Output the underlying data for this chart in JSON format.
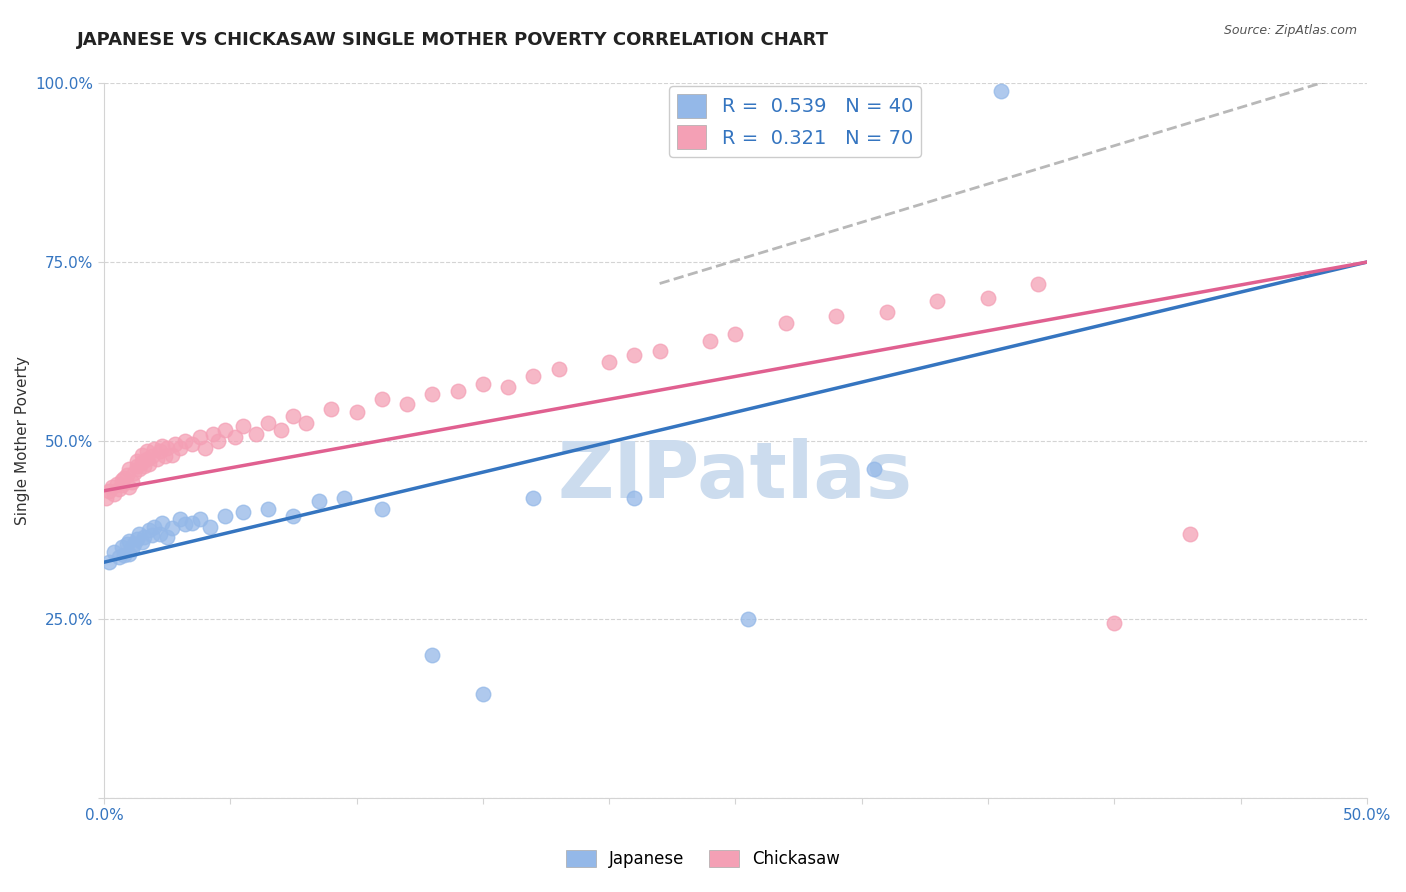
{
  "title": "JAPANESE VS CHICKASAW SINGLE MOTHER POVERTY CORRELATION CHART",
  "source_text": "Source: ZipAtlas.com",
  "ylabel": "Single Mother Poverty",
  "xlabel": "",
  "xlim": [
    0.0,
    0.5
  ],
  "ylim": [
    0.0,
    1.0
  ],
  "xticks": [
    0.0,
    0.05,
    0.1,
    0.15,
    0.2,
    0.25,
    0.3,
    0.35,
    0.4,
    0.45,
    0.5
  ],
  "yticks": [
    0.0,
    0.25,
    0.5,
    0.75,
    1.0
  ],
  "xticklabels": [
    "0.0%",
    "",
    "",
    "",
    "",
    "",
    "",
    "",
    "",
    "",
    "50.0%"
  ],
  "yticklabels": [
    "",
    "25.0%",
    "50.0%",
    "75.0%",
    "100.0%"
  ],
  "legend_R_japanese": "0.539",
  "legend_N_japanese": "40",
  "legend_R_chickasaw": "0.321",
  "legend_N_chickasaw": "70",
  "japanese_color": "#94b8e8",
  "chickasaw_color": "#f4a0b5",
  "japanese_line_color": "#3575c0",
  "chickasaw_line_color": "#e06090",
  "dashed_line_color": "#b8b8b8",
  "watermark_color": "#ccdcee",
  "background_color": "#ffffff",
  "grid_color": "#d4d4d4",
  "japanese_line_x": [
    0.0,
    0.5
  ],
  "japanese_line_y": [
    0.33,
    0.75
  ],
  "chickasaw_line_x": [
    0.0,
    0.5
  ],
  "chickasaw_line_y": [
    0.43,
    0.75
  ],
  "dashed_line_x": [
    0.22,
    0.5
  ],
  "dashed_line_y": [
    0.72,
    1.02
  ],
  "japanese_x": [
    0.002,
    0.004,
    0.006,
    0.007,
    0.008,
    0.009,
    0.01,
    0.01,
    0.011,
    0.012,
    0.013,
    0.014,
    0.015,
    0.016,
    0.018,
    0.019,
    0.02,
    0.022,
    0.023,
    0.025,
    0.027,
    0.03,
    0.032,
    0.035,
    0.038,
    0.042,
    0.048,
    0.055,
    0.065,
    0.075,
    0.085,
    0.095,
    0.11,
    0.13,
    0.15,
    0.17,
    0.21,
    0.255,
    0.305,
    0.355
  ],
  "japanese_y": [
    0.33,
    0.345,
    0.338,
    0.352,
    0.34,
    0.355,
    0.36,
    0.342,
    0.348,
    0.355,
    0.362,
    0.37,
    0.358,
    0.365,
    0.375,
    0.368,
    0.38,
    0.37,
    0.385,
    0.365,
    0.378,
    0.39,
    0.383,
    0.385,
    0.39,
    0.38,
    0.395,
    0.4,
    0.405,
    0.395,
    0.415,
    0.42,
    0.405,
    0.2,
    0.145,
    0.42,
    0.42,
    0.25,
    0.46,
    0.99
  ],
  "chickasaw_x": [
    0.001,
    0.002,
    0.003,
    0.004,
    0.005,
    0.006,
    0.007,
    0.007,
    0.008,
    0.009,
    0.01,
    0.01,
    0.011,
    0.012,
    0.013,
    0.013,
    0.014,
    0.015,
    0.015,
    0.016,
    0.017,
    0.017,
    0.018,
    0.019,
    0.02,
    0.021,
    0.022,
    0.023,
    0.024,
    0.025,
    0.027,
    0.028,
    0.03,
    0.032,
    0.035,
    0.038,
    0.04,
    0.043,
    0.045,
    0.048,
    0.052,
    0.055,
    0.06,
    0.065,
    0.07,
    0.075,
    0.08,
    0.09,
    0.1,
    0.11,
    0.12,
    0.13,
    0.14,
    0.15,
    0.16,
    0.17,
    0.18,
    0.2,
    0.21,
    0.22,
    0.24,
    0.25,
    0.27,
    0.29,
    0.31,
    0.33,
    0.35,
    0.37,
    0.4,
    0.43
  ],
  "chickasaw_y": [
    0.42,
    0.43,
    0.435,
    0.425,
    0.44,
    0.432,
    0.445,
    0.438,
    0.448,
    0.452,
    0.435,
    0.46,
    0.442,
    0.455,
    0.465,
    0.472,
    0.46,
    0.47,
    0.48,
    0.465,
    0.475,
    0.485,
    0.468,
    0.478,
    0.488,
    0.475,
    0.485,
    0.492,
    0.478,
    0.49,
    0.48,
    0.495,
    0.49,
    0.5,
    0.495,
    0.505,
    0.49,
    0.51,
    0.5,
    0.515,
    0.505,
    0.52,
    0.51,
    0.525,
    0.515,
    0.535,
    0.525,
    0.545,
    0.54,
    0.558,
    0.552,
    0.565,
    0.57,
    0.58,
    0.575,
    0.59,
    0.6,
    0.61,
    0.62,
    0.625,
    0.64,
    0.65,
    0.665,
    0.675,
    0.68,
    0.695,
    0.7,
    0.72,
    0.245,
    0.37
  ],
  "title_fontsize": 13,
  "axis_label_fontsize": 11,
  "tick_fontsize": 11,
  "legend_fontsize": 14
}
